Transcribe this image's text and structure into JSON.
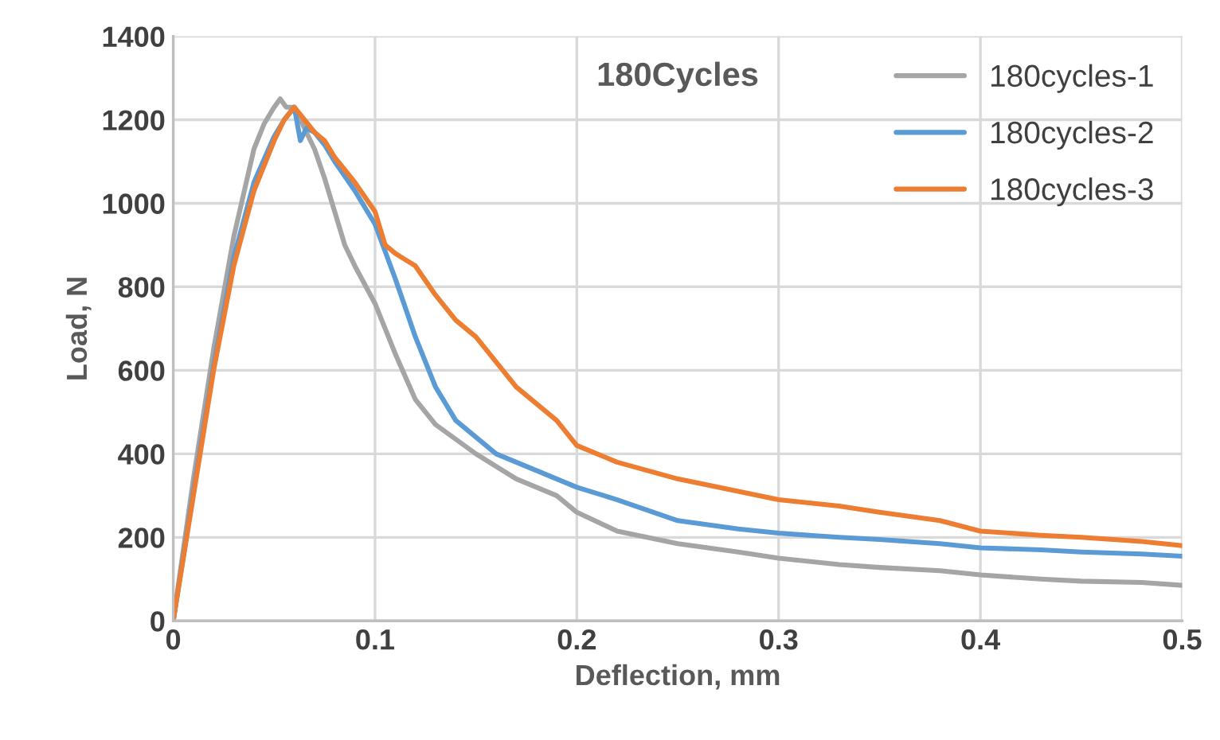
{
  "chart_data": {
    "type": "line",
    "xlabel": "Deflection, mm",
    "ylabel": "Load, N",
    "annotations": [
      "180Cycles"
    ],
    "xlim": [
      0,
      0.5
    ],
    "xticks": [
      {
        "value": 0,
        "label": "0"
      },
      0.1,
      0.2,
      0.3,
      0.4,
      0.5
    ],
    "ylim": [
      0,
      1400
    ],
    "yticks": [
      0,
      200,
      400,
      600,
      800,
      1000,
      1200,
      1400
    ],
    "grid": true,
    "legend": "top right",
    "series": [
      {
        "name": "180cycles-1",
        "color": "#a5a5a5",
        "x": [
          0,
          0.01,
          0.02,
          0.03,
          0.04,
          0.045,
          0.05,
          0.053,
          0.056,
          0.06,
          0.065,
          0.07,
          0.075,
          0.08,
          0.085,
          0.09,
          0.1,
          0.11,
          0.12,
          0.13,
          0.15,
          0.17,
          0.19,
          0.2,
          0.22,
          0.25,
          0.28,
          0.3,
          0.33,
          0.35,
          0.38,
          0.4,
          0.43,
          0.45,
          0.48,
          0.5
        ],
        "values": [
          0,
          340,
          650,
          920,
          1130,
          1190,
          1230,
          1250,
          1230,
          1230,
          1180,
          1130,
          1060,
          980,
          900,
          850,
          760,
          640,
          530,
          470,
          400,
          340,
          300,
          260,
          215,
          185,
          165,
          150,
          135,
          128,
          120,
          110,
          100,
          95,
          92,
          85
        ]
      },
      {
        "name": "180cycles-2",
        "color": "#5b9bd5",
        "x": [
          0,
          0.01,
          0.02,
          0.03,
          0.04,
          0.05,
          0.055,
          0.06,
          0.063,
          0.066,
          0.07,
          0.075,
          0.08,
          0.09,
          0.1,
          0.11,
          0.12,
          0.13,
          0.14,
          0.15,
          0.16,
          0.18,
          0.2,
          0.22,
          0.25,
          0.28,
          0.3,
          0.33,
          0.35,
          0.38,
          0.4,
          0.43,
          0.45,
          0.48,
          0.5
        ],
        "values": [
          0,
          310,
          610,
          870,
          1050,
          1160,
          1200,
          1230,
          1150,
          1180,
          1170,
          1140,
          1100,
          1030,
          950,
          820,
          680,
          560,
          480,
          440,
          400,
          360,
          320,
          290,
          240,
          220,
          210,
          200,
          195,
          185,
          175,
          170,
          165,
          160,
          155
        ]
      },
      {
        "name": "180cycles-3",
        "color": "#ed7d31",
        "x": [
          0,
          0.01,
          0.02,
          0.03,
          0.04,
          0.05,
          0.055,
          0.06,
          0.065,
          0.07,
          0.075,
          0.08,
          0.09,
          0.1,
          0.105,
          0.11,
          0.12,
          0.13,
          0.14,
          0.15,
          0.16,
          0.17,
          0.18,
          0.19,
          0.2,
          0.22,
          0.25,
          0.28,
          0.3,
          0.33,
          0.35,
          0.38,
          0.4,
          0.43,
          0.45,
          0.48,
          0.5
        ],
        "values": [
          0,
          300,
          600,
          850,
          1030,
          1150,
          1200,
          1230,
          1200,
          1170,
          1150,
          1110,
          1050,
          980,
          900,
          880,
          850,
          780,
          720,
          680,
          620,
          560,
          520,
          480,
          420,
          380,
          340,
          310,
          290,
          275,
          260,
          240,
          215,
          205,
          200,
          190,
          180
        ]
      }
    ]
  }
}
